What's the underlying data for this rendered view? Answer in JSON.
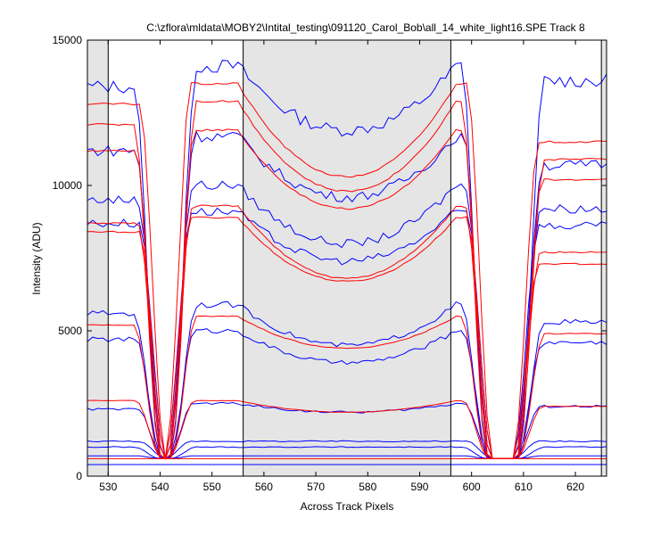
{
  "chart_data": {
    "type": "line",
    "title": "C:\\zflora\\mldata\\MOBY2\\Intital_testing\\091120_Carol_Bob\\all_14_white_light16.SPE    Track 8",
    "xlabel": "Across Track Pixels",
    "ylabel": "Intensity (ADU)",
    "xlim": [
      526,
      626
    ],
    "ylim": [
      0,
      15000
    ],
    "xticks": [
      530,
      540,
      550,
      560,
      570,
      580,
      590,
      600,
      610,
      620
    ],
    "yticks": [
      0,
      5000,
      10000,
      15000
    ],
    "grid": false,
    "legend": "none",
    "shaded_regions": [
      [
        526,
        530
      ],
      [
        556,
        596
      ],
      [
        625,
        626
      ]
    ],
    "vertical_lines": [
      530,
      556,
      596,
      625
    ],
    "colors": {
      "blue": "#0000ff",
      "red": "#ff0000",
      "shade": "#e5e5e5"
    },
    "series": [
      {
        "color": "blue",
        "plateau_left": 13400,
        "plateau_mid_edge": 14100,
        "plateau_mid_center": 11900,
        "plateau_right": 13600,
        "floor": 600
      },
      {
        "color": "blue",
        "plateau_left": 11200,
        "plateau_mid_edge": 11700,
        "plateau_mid_center": 9600,
        "plateau_right": 10700,
        "floor": 600
      },
      {
        "color": "blue",
        "plateau_left": 9500,
        "plateau_mid_edge": 10000,
        "plateau_mid_center": 8000,
        "plateau_right": 9200,
        "floor": 600
      },
      {
        "color": "blue",
        "plateau_left": 8700,
        "plateau_mid_edge": 9100,
        "plateau_mid_center": 7400,
        "plateau_right": 8600,
        "floor": 600
      },
      {
        "color": "blue",
        "plateau_left": 5600,
        "plateau_mid_edge": 5900,
        "plateau_mid_center": 4500,
        "plateau_right": 5300,
        "floor": 600
      },
      {
        "color": "blue",
        "plateau_left": 4700,
        "plateau_mid_edge": 5000,
        "plateau_mid_center": 3900,
        "plateau_right": 4600,
        "floor": 600
      },
      {
        "color": "blue",
        "plateau_left": 2300,
        "plateau_mid_edge": 2500,
        "plateau_mid_center": 2200,
        "plateau_right": 2400,
        "floor": 600
      },
      {
        "color": "blue",
        "plateau_left": 1200,
        "plateau_mid_edge": 1200,
        "plateau_mid_center": 1200,
        "plateau_right": 1200,
        "floor": 600
      },
      {
        "color": "blue",
        "plateau_left": 1000,
        "plateau_mid_edge": 1000,
        "plateau_mid_center": 1000,
        "plateau_right": 1000,
        "floor": 600
      },
      {
        "color": "blue",
        "plateau_left": 700,
        "plateau_mid_edge": 700,
        "plateau_mid_center": 700,
        "plateau_right": 700,
        "floor": 600
      },
      {
        "color": "blue",
        "plateau_left": 400,
        "plateau_mid_edge": 400,
        "plateau_mid_center": 400,
        "plateau_right": 400,
        "floor": 400
      },
      {
        "color": "red",
        "plateau_left": 12800,
        "plateau_mid_edge": 13500,
        "plateau_mid_center": 10300,
        "plateau_right": 11500,
        "floor": 600
      },
      {
        "color": "red",
        "plateau_left": 12100,
        "plateau_mid_edge": 12900,
        "plateau_mid_center": 9800,
        "plateau_right": 10900,
        "floor": 600
      },
      {
        "color": "red",
        "plateau_left": 11200,
        "plateau_mid_edge": 11900,
        "plateau_mid_center": 9200,
        "plateau_right": 10200,
        "floor": 600
      },
      {
        "color": "red",
        "plateau_left": 8700,
        "plateau_mid_edge": 9300,
        "plateau_mid_center": 6800,
        "plateau_right": 7700,
        "floor": 600
      },
      {
        "color": "red",
        "plateau_left": 8400,
        "plateau_mid_edge": 8900,
        "plateau_mid_center": 6700,
        "plateau_right": 7300,
        "floor": 600
      },
      {
        "color": "red",
        "plateau_left": 5200,
        "plateau_mid_edge": 5500,
        "plateau_mid_center": 4400,
        "plateau_right": 4900,
        "floor": 600
      },
      {
        "color": "red",
        "plateau_left": 2600,
        "plateau_mid_edge": 2600,
        "plateau_mid_center": 2200,
        "plateau_right": 2400,
        "floor": 600
      },
      {
        "color": "red",
        "plateau_left": 600,
        "plateau_mid_edge": 600,
        "plateau_mid_center": 600,
        "plateau_right": 600,
        "floor": 600
      }
    ]
  }
}
